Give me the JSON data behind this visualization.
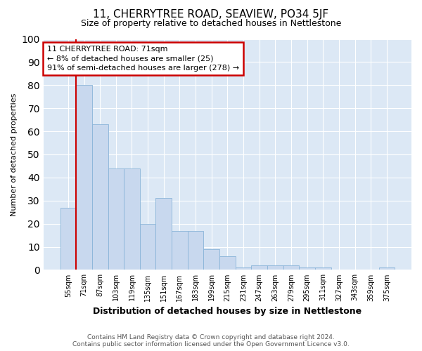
{
  "title": "11, CHERRYTREE ROAD, SEAVIEW, PO34 5JF",
  "subtitle": "Size of property relative to detached houses in Nettlestone",
  "xlabel": "Distribution of detached houses by size in Nettlestone",
  "ylabel": "Number of detached properties",
  "categories": [
    "55sqm",
    "71sqm",
    "87sqm",
    "103sqm",
    "119sqm",
    "135sqm",
    "151sqm",
    "167sqm",
    "183sqm",
    "199sqm",
    "215sqm",
    "231sqm",
    "247sqm",
    "263sqm",
    "279sqm",
    "295sqm",
    "311sqm",
    "327sqm",
    "343sqm",
    "359sqm",
    "375sqm"
  ],
  "values": [
    27,
    80,
    63,
    44,
    44,
    20,
    31,
    17,
    17,
    9,
    6,
    1,
    2,
    2,
    2,
    1,
    1,
    0,
    0,
    0,
    1
  ],
  "bar_color": "#c8d8ee",
  "bar_edge_color": "#8ab4d8",
  "highlight_line_color": "#cc0000",
  "annotation_box_color": "#cc0000",
  "annotation_line1": "11 CHERRYTREE ROAD: 71sqm",
  "annotation_line2": "← 8% of detached houses are smaller (25)",
  "annotation_line3": "91% of semi-detached houses are larger (278) →",
  "ylim": [
    0,
    100
  ],
  "yticks": [
    0,
    10,
    20,
    30,
    40,
    50,
    60,
    70,
    80,
    90,
    100
  ],
  "plot_bg_color": "#dce8f5",
  "fig_bg_color": "#ffffff",
  "grid_color": "#ffffff",
  "footer_line1": "Contains HM Land Registry data © Crown copyright and database right 2024.",
  "footer_line2": "Contains public sector information licensed under the Open Government Licence v3.0.",
  "title_fontsize": 11,
  "subtitle_fontsize": 9,
  "ylabel_fontsize": 8,
  "xlabel_fontsize": 9
}
